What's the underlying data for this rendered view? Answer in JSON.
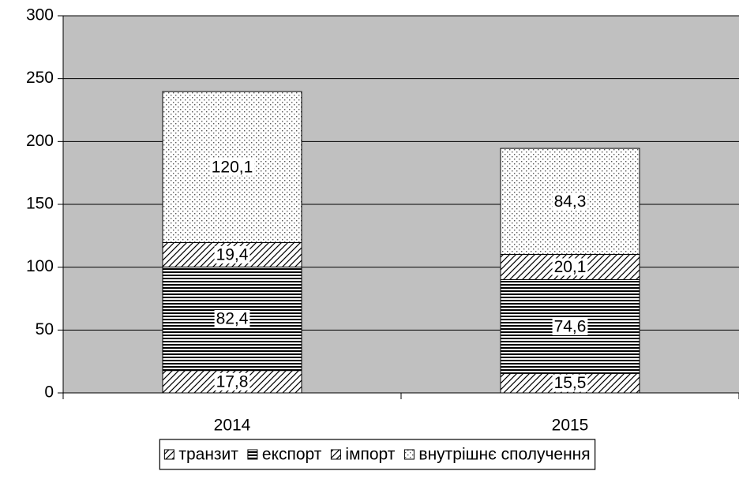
{
  "chart_data": {
    "type": "stacked_bar",
    "categories": [
      "2014",
      "2015"
    ],
    "series": [
      {
        "name": "транзит",
        "color": "#000000",
        "pattern": "diag-up",
        "values": [
          17.8,
          15.5
        ],
        "value_labels": [
          "17,8",
          "15,5"
        ]
      },
      {
        "name": "експорт",
        "color": "#000000",
        "pattern": "horizontal",
        "values": [
          82.4,
          74.6
        ],
        "value_labels": [
          "82,4",
          "74,6"
        ]
      },
      {
        "name": "імпорт",
        "color": "#000000",
        "pattern": "diag-up",
        "values": [
          19.4,
          20.1
        ],
        "value_labels": [
          "19,4",
          "20,1"
        ]
      },
      {
        "name": "внутрішнє сполучення",
        "color": "#000000",
        "pattern": "dots",
        "values": [
          120.1,
          84.3
        ],
        "value_labels": [
          "120,1",
          "84,3"
        ]
      }
    ],
    "ylim": [
      0,
      300
    ],
    "yticks": [
      0,
      50,
      100,
      150,
      200,
      250,
      300
    ],
    "grid": true,
    "plot_background": "#c0c0c0",
    "legend": "bottom"
  }
}
